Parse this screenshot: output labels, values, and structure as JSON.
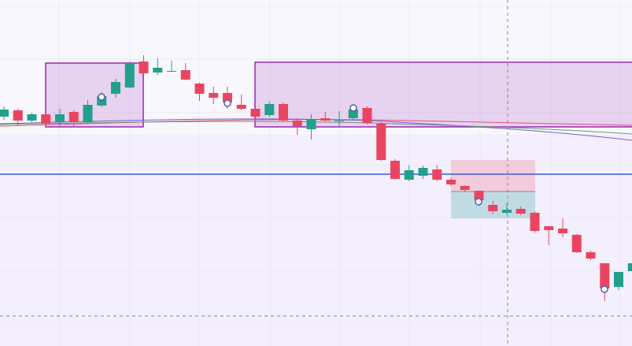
{
  "chart_data": {
    "type": "candlestick",
    "ylim": [
      0,
      439
    ],
    "colors": {
      "up": "#22a08c",
      "down": "#ea4560"
    },
    "open": [
      291,
      299,
      286,
      294,
      284,
      297,
      284,
      305,
      320,
      328,
      361,
      347,
      348,
      350,
      333,
      321,
      321,
      306,
      301,
      293,
      307,
      286,
      275,
      289,
      285,
      289,
      302,
      282,
      235,
      211,
      216,
      224,
      211,
      203,
      197,
      179,
      169,
      174,
      169,
      152,
      149,
      141,
      119,
      105,
      75,
      95
    ],
    "high": [
      304,
      301,
      296,
      294,
      301,
      299,
      312,
      322,
      339,
      361,
      369,
      365,
      362,
      359,
      334,
      329,
      329,
      319,
      303,
      310,
      309,
      289,
      294,
      297,
      298,
      306,
      304,
      284,
      237,
      229,
      229,
      229,
      214,
      204,
      197,
      184,
      181,
      177,
      171,
      152,
      162,
      142,
      121,
      105,
      94,
      106
    ],
    "low": [
      287,
      280,
      284,
      279,
      277,
      279,
      282,
      303,
      315,
      327,
      344,
      344,
      348,
      337,
      311,
      307,
      301,
      299,
      289,
      291,
      284,
      268,
      262,
      284,
      279,
      287,
      281,
      235,
      211,
      209,
      212,
      209,
      203,
      195,
      178,
      167,
      167,
      166,
      144,
      128,
      138,
      118,
      109,
      57,
      71,
      93
    ],
    "close": [
      300,
      286,
      294,
      282,
      294,
      285,
      306,
      317,
      335,
      359,
      346,
      353,
      349,
      338,
      320,
      315,
      309,
      301,
      291,
      307,
      286,
      279,
      287,
      286,
      286,
      300,
      283,
      236,
      212,
      223,
      226,
      211,
      205,
      198,
      185,
      171,
      173,
      168,
      146,
      147,
      143,
      119,
      111,
      73,
      94,
      105
    ]
  }
}
